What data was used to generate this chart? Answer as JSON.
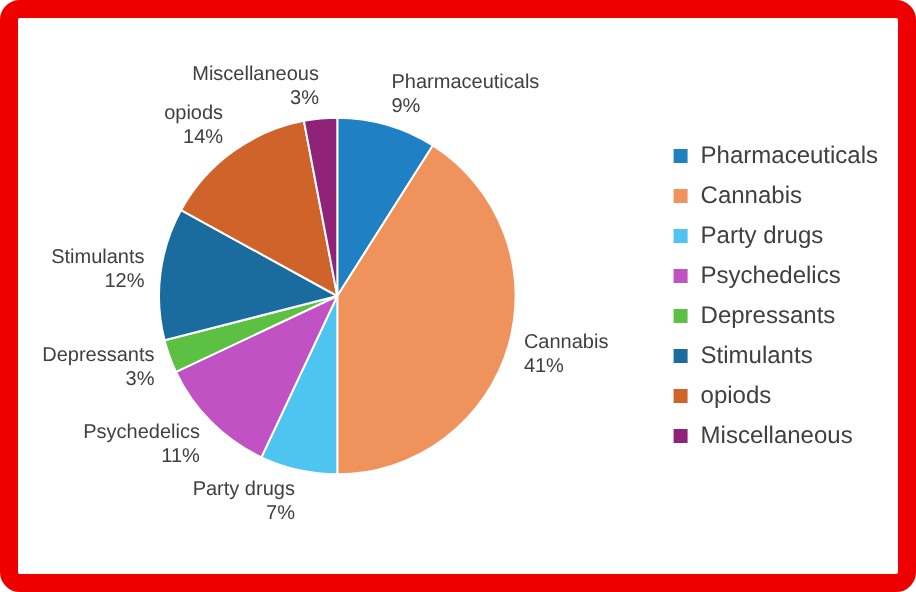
{
  "chart_data": {
    "type": "pie",
    "categories": [
      "Pharmaceuticals",
      "Cannabis",
      "Party drugs",
      "Psychedelics",
      "Depressants",
      "Stimulants",
      "opiods",
      "Miscellaneous"
    ],
    "values": [
      9,
      41,
      7,
      11,
      3,
      12,
      14,
      3
    ],
    "value_labels": [
      "9%",
      "41%",
      "7%",
      "11%",
      "3%",
      "12%",
      "14%",
      "3%"
    ],
    "colors": [
      "#1f80c4",
      "#f0925c",
      "#4ec4f0",
      "#c052c4",
      "#5cc043",
      "#1a6b9e",
      "#d0632a",
      "#8e2378"
    ],
    "legend": "right"
  }
}
